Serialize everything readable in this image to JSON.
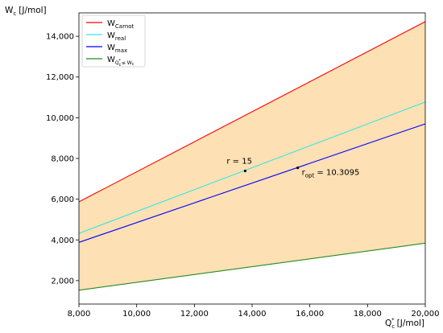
{
  "chart_data": {
    "type": "line",
    "xlabel": {
      "main": "Q",
      "sub": "c",
      "sup": "*",
      "unit": "[J/mol]"
    },
    "ylabel": {
      "main": "W",
      "sub": "c",
      "unit": "[J/mol]"
    },
    "xlim": [
      8000,
      20000
    ],
    "ylim": [
      850,
      15150
    ],
    "xticks": [
      8000,
      10000,
      12000,
      14000,
      16000,
      18000,
      20000
    ],
    "xtick_labels": [
      "8,000",
      "10,000",
      "12,000",
      "14,000",
      "16,000",
      "18,000",
      "20,000"
    ],
    "yticks": [
      2000,
      4000,
      6000,
      8000,
      10000,
      12000,
      14000
    ],
    "ytick_labels": [
      "2,000",
      "4,000",
      "6,000",
      "8,000",
      "10,000",
      "12,000",
      "14,000"
    ],
    "grid": false,
    "legend_position": "upper-left",
    "fill_between": {
      "upper_series": "Carnot",
      "lower_series": "Qc_le_Wc",
      "color": "#fde0b3"
    },
    "series": [
      {
        "key": "Carnot",
        "name_main": "W",
        "name_sub": "Carnot",
        "color": "#ff0000",
        "x": [
          8000,
          20000
        ],
        "y": [
          5870,
          14720
        ]
      },
      {
        "key": "real",
        "name_main": "W",
        "name_sub": "real",
        "color": "#33e6e6",
        "x": [
          8000,
          20000
        ],
        "y": [
          4320,
          10770
        ]
      },
      {
        "key": "max",
        "name_main": "W",
        "name_sub": "max",
        "color": "#0000ff",
        "x": [
          8000,
          20000
        ],
        "y": [
          3880,
          9700
        ]
      },
      {
        "key": "Qc_le_Wc",
        "name_main": "W",
        "name_sub": "Q",
        "name_sub_sub": "c",
        "name_sub_sup": "*",
        "name_sub_tail": "≤ W",
        "name_sub_tail_sub": "c",
        "color": "#228b22",
        "x": [
          8000,
          20000
        ],
        "y": [
          1530,
          3840
        ]
      }
    ],
    "annotations": [
      {
        "text": "r = 15",
        "x": 13760,
        "y": 7390
      },
      {
        "text": "r",
        "sub": "opt",
        "tail": " = 10.3095",
        "x": 15580,
        "y": 7540
      }
    ]
  }
}
